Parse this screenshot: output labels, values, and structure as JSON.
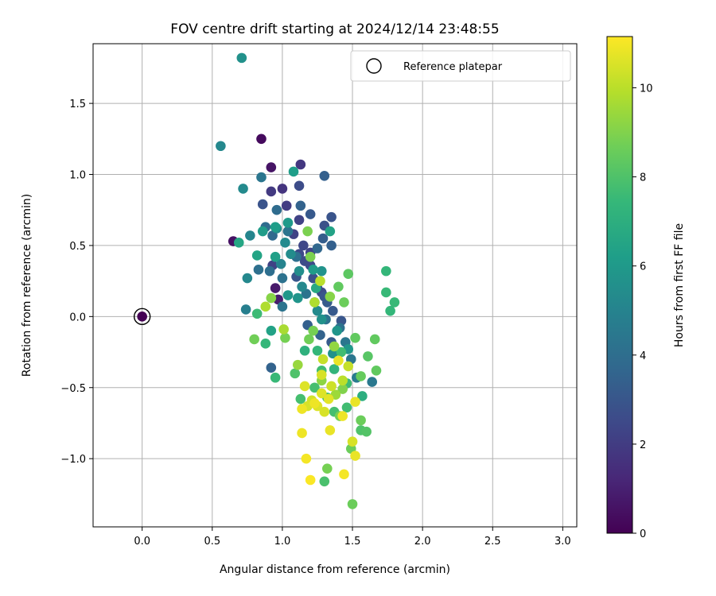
{
  "chart_data": {
    "type": "scatter",
    "title": "FOV centre drift starting at 2024/12/14 23:48:55",
    "xlabel": "Angular distance from reference (arcmin)",
    "ylabel": "Rotation from reference (arcmin)",
    "xlim": [
      -0.35,
      3.1
    ],
    "ylim": [
      -1.48,
      1.92
    ],
    "xticks": [
      0.0,
      0.5,
      1.0,
      1.5,
      2.0,
      2.5,
      3.0
    ],
    "xtick_labels": [
      "0.0",
      "0.5",
      "1.0",
      "1.5",
      "2.0",
      "2.5",
      "3.0"
    ],
    "yticks": [
      -1.0,
      -0.5,
      0.0,
      0.5,
      1.0,
      1.5
    ],
    "ytick_labels": [
      "−1.0",
      "−0.5",
      "0.0",
      "0.5",
      "1.0",
      "1.5"
    ],
    "grid": true,
    "legend": {
      "placement": "top-right",
      "entries": [
        "Reference platepar"
      ]
    },
    "colorbar": {
      "label": "Hours from first FF file",
      "range": [
        0,
        11.15
      ],
      "ticks": [
        0,
        2,
        4,
        6,
        8,
        10
      ],
      "tick_labels": [
        "0",
        "2",
        "4",
        "6",
        "8",
        "10"
      ],
      "colormap": "viridis",
      "colors": [
        "#440154",
        "#482878",
        "#3e4989",
        "#31688e",
        "#26828e",
        "#1f9e89",
        "#35b779",
        "#6ece58",
        "#b5de2b",
        "#fde725"
      ]
    },
    "reference_point": {
      "x": 0.0,
      "y": 0.0,
      "hours": 0
    },
    "points": [
      [
        0.0,
        0.0,
        0.0
      ],
      [
        0.85,
        1.25,
        0.3
      ],
      [
        0.65,
        0.53,
        0.5
      ],
      [
        0.92,
        1.05,
        0.6
      ],
      [
        0.95,
        0.2,
        0.8
      ],
      [
        0.97,
        0.12,
        0.9
      ],
      [
        1.13,
        1.07,
        1.8
      ],
      [
        1.0,
        0.9,
        1.7
      ],
      [
        0.92,
        0.88,
        1.9
      ],
      [
        1.03,
        0.78,
        2.0
      ],
      [
        1.12,
        0.68,
        2.2
      ],
      [
        1.08,
        0.58,
        2.2
      ],
      [
        1.15,
        0.5,
        2.4
      ],
      [
        1.2,
        0.45,
        2.3
      ],
      [
        1.12,
        0.44,
        2.5
      ],
      [
        1.16,
        0.39,
        2.6
      ],
      [
        1.2,
        0.36,
        2.5
      ],
      [
        1.22,
        0.27,
        2.8
      ],
      [
        1.25,
        0.2,
        2.7
      ],
      [
        1.28,
        0.17,
        2.6
      ],
      [
        1.3,
        0.14,
        3.0
      ],
      [
        1.32,
        0.1,
        3.2
      ],
      [
        1.36,
        0.04,
        3.1
      ],
      [
        1.42,
        -0.03,
        3.0
      ],
      [
        1.12,
        0.92,
        2.6
      ],
      [
        0.86,
        0.79,
        2.9
      ],
      [
        1.1,
        0.28,
        3.0
      ],
      [
        0.93,
        0.36,
        2.2
      ],
      [
        1.2,
        0.72,
        3.1
      ],
      [
        1.3,
        0.64,
        2.8
      ],
      [
        1.29,
        0.55,
        3.3
      ],
      [
        1.35,
        0.5,
        3.4
      ],
      [
        1.25,
        0.48,
        3.7
      ],
      [
        1.13,
        0.78,
        3.5
      ],
      [
        1.35,
        0.7,
        2.9
      ],
      [
        1.3,
        0.99,
        3.4
      ],
      [
        0.92,
        -0.36,
        3.5
      ],
      [
        1.27,
        -0.13,
        3.5
      ],
      [
        1.35,
        -0.18,
        3.2
      ],
      [
        1.18,
        -0.06,
        3.4
      ],
      [
        0.85,
        0.98,
        4.4
      ],
      [
        1.0,
        0.27,
        4.2
      ],
      [
        0.88,
        0.63,
        3.9
      ],
      [
        0.96,
        0.75,
        3.9
      ],
      [
        0.93,
        0.57,
        3.8
      ],
      [
        1.04,
        0.6,
        4.3
      ],
      [
        1.1,
        0.42,
        4.1
      ],
      [
        0.91,
        0.32,
        4.0
      ],
      [
        1.0,
        0.07,
        4.3
      ],
      [
        0.83,
        0.33,
        4.1
      ],
      [
        1.17,
        0.16,
        4.3
      ],
      [
        1.31,
        -0.02,
        4.2
      ],
      [
        1.41,
        -0.08,
        4.2
      ],
      [
        1.45,
        -0.18,
        4.4
      ],
      [
        1.49,
        -0.3,
        4.4
      ],
      [
        1.53,
        -0.43,
        4.6
      ],
      [
        1.64,
        -0.46,
        4.5
      ],
      [
        0.74,
        0.05,
        4.8
      ],
      [
        0.72,
        0.9,
        5.3
      ],
      [
        0.56,
        1.2,
        5.2
      ],
      [
        0.71,
        1.82,
        5.6
      ],
      [
        0.96,
        0.62,
        5.5
      ],
      [
        0.99,
        0.37,
        5.0
      ],
      [
        0.75,
        0.27,
        5.2
      ],
      [
        0.77,
        0.57,
        5.1
      ],
      [
        1.02,
        0.52,
        5.3
      ],
      [
        1.06,
        0.44,
        5.4
      ],
      [
        1.12,
        0.32,
        5.5
      ],
      [
        1.14,
        0.21,
        5.2
      ],
      [
        1.23,
        0.1,
        5.1
      ],
      [
        1.25,
        0.04,
        5.3
      ],
      [
        1.28,
        -0.02,
        5.6
      ],
      [
        1.11,
        0.13,
        5.8
      ],
      [
        1.39,
        -0.1,
        5.8
      ],
      [
        1.47,
        -0.23,
        5.9
      ],
      [
        1.36,
        -0.26,
        5.6
      ],
      [
        1.04,
        0.15,
        5.9
      ],
      [
        1.28,
        0.32,
        5.7
      ],
      [
        1.08,
        1.02,
        6.2
      ],
      [
        1.04,
        0.66,
        6.0
      ],
      [
        1.22,
        0.33,
        6.1
      ],
      [
        0.86,
        0.6,
        6.1
      ],
      [
        0.95,
        0.63,
        6.2
      ],
      [
        1.34,
        0.6,
        6.4
      ],
      [
        0.92,
        -0.1,
        6.4
      ],
      [
        1.24,
        0.2,
        6.7
      ],
      [
        0.69,
        0.52,
        6.6
      ],
      [
        0.95,
        0.42,
        6.3
      ],
      [
        0.82,
        0.43,
        6.5
      ],
      [
        1.57,
        -0.56,
        7.0
      ],
      [
        1.16,
        -0.24,
        7.1
      ],
      [
        1.74,
        0.32,
        7.4
      ],
      [
        1.8,
        0.1,
        7.5
      ],
      [
        1.74,
        0.17,
        7.5
      ],
      [
        1.77,
        0.04,
        7.4
      ],
      [
        0.88,
        -0.19,
        7.4
      ],
      [
        0.95,
        -0.43,
        7.5
      ],
      [
        0.82,
        0.02,
        7.6
      ],
      [
        1.37,
        -0.37,
        7.3
      ],
      [
        1.42,
        -0.25,
        7.7
      ],
      [
        1.46,
        -0.47,
        7.6
      ],
      [
        1.28,
        -0.38,
        7.7
      ],
      [
        1.32,
        -0.57,
        7.8
      ],
      [
        1.23,
        -0.5,
        7.8
      ],
      [
        1.37,
        -0.67,
        7.8
      ],
      [
        1.46,
        -0.64,
        7.7
      ],
      [
        1.56,
        -0.8,
        8.0
      ],
      [
        1.6,
        -0.81,
        8.1
      ],
      [
        1.3,
        -1.16,
        7.9
      ],
      [
        1.25,
        -0.24,
        7.4
      ],
      [
        1.09,
        -0.4,
        8.0
      ],
      [
        1.13,
        -0.58,
        7.8
      ],
      [
        1.4,
        0.21,
        8.4
      ],
      [
        1.47,
        0.3,
        8.3
      ],
      [
        1.44,
        0.1,
        8.6
      ],
      [
        1.52,
        -0.15,
        8.4
      ],
      [
        1.66,
        -0.16,
        8.4
      ],
      [
        1.61,
        -0.28,
        8.2
      ],
      [
        1.56,
        -0.42,
        8.5
      ],
      [
        1.67,
        -0.38,
        8.4
      ],
      [
        1.49,
        -0.93,
        8.6
      ],
      [
        1.32,
        -1.07,
        8.8
      ],
      [
        1.5,
        -1.32,
        8.6
      ],
      [
        1.56,
        -0.73,
        8.6
      ],
      [
        1.18,
        0.6,
        8.9
      ],
      [
        0.92,
        0.13,
        9.1
      ],
      [
        1.43,
        -0.51,
        9.0
      ],
      [
        1.41,
        -0.7,
        8.8
      ],
      [
        1.2,
        0.42,
        8.9
      ],
      [
        1.34,
        0.14,
        9.1
      ],
      [
        1.19,
        -0.16,
        8.7
      ],
      [
        1.02,
        -0.15,
        8.8
      ],
      [
        1.22,
        -0.1,
        8.8
      ],
      [
        0.8,
        -0.16,
        8.7
      ],
      [
        1.37,
        -0.21,
        9.3
      ],
      [
        1.11,
        -0.34,
        9.4
      ],
      [
        1.28,
        -0.45,
        9.2
      ],
      [
        1.38,
        -0.55,
        9.5
      ],
      [
        1.01,
        -0.09,
        9.7
      ],
      [
        0.88,
        0.07,
        9.8
      ],
      [
        1.23,
        0.1,
        9.8
      ],
      [
        1.27,
        0.25,
        10.0
      ],
      [
        1.43,
        -0.45,
        10.0
      ],
      [
        1.47,
        -0.35,
        10.2
      ],
      [
        1.29,
        -0.3,
        10.2
      ],
      [
        1.35,
        -0.49,
        10.3
      ],
      [
        1.28,
        -0.41,
        10.5
      ],
      [
        1.21,
        -0.59,
        10.4
      ],
      [
        1.25,
        -0.63,
        10.6
      ],
      [
        1.18,
        -0.63,
        10.5
      ],
      [
        1.14,
        -0.65,
        10.9
      ],
      [
        1.16,
        -0.49,
        10.6
      ],
      [
        1.33,
        -0.58,
        10.7
      ],
      [
        1.4,
        -0.31,
        10.8
      ],
      [
        1.28,
        -0.54,
        10.6
      ],
      [
        1.3,
        -0.67,
        10.5
      ],
      [
        1.5,
        -0.88,
        10.5
      ],
      [
        1.14,
        -0.82,
        10.9
      ],
      [
        1.34,
        -0.8,
        10.8
      ],
      [
        1.43,
        -0.7,
        10.9
      ],
      [
        1.17,
        -1.0,
        11.0
      ],
      [
        1.2,
        -1.15,
        11.1
      ],
      [
        1.44,
        -1.11,
        11.0
      ],
      [
        1.52,
        -0.98,
        10.8
      ],
      [
        1.52,
        -0.6,
        10.8
      ],
      [
        1.23,
        -0.61,
        10.9
      ]
    ]
  }
}
